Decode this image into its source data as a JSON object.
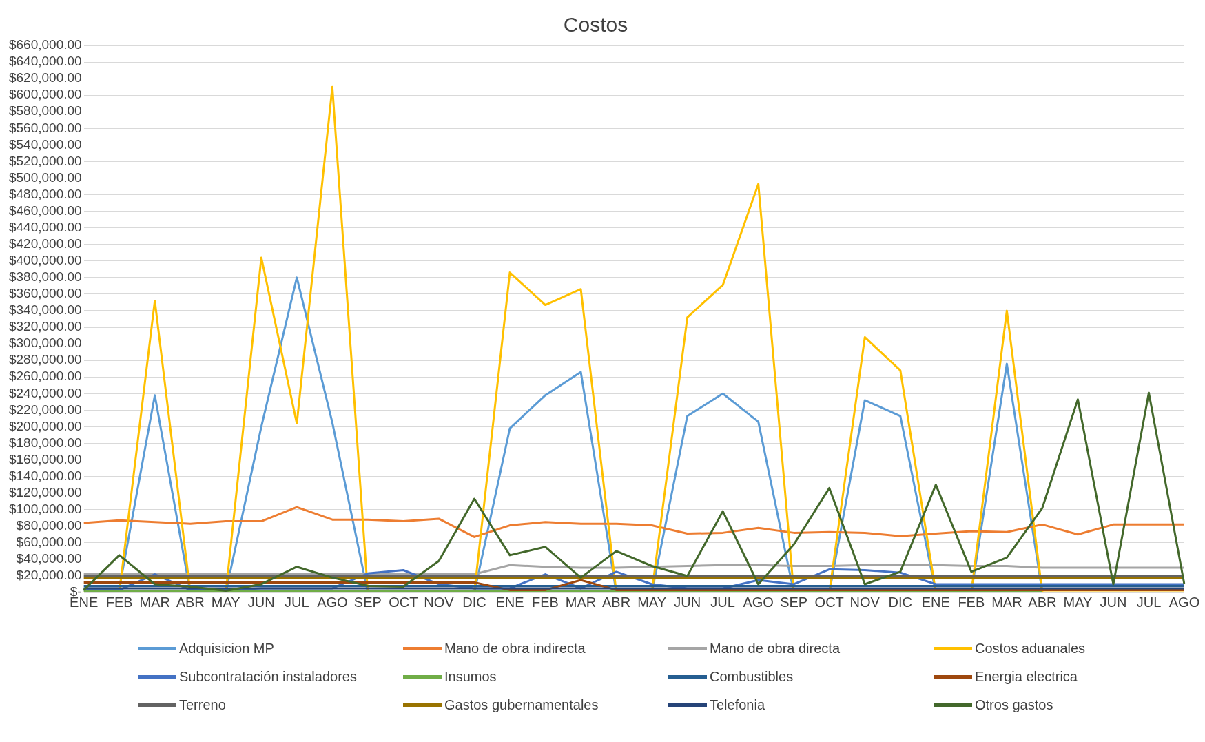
{
  "chart_data": {
    "type": "line",
    "title": "Costos",
    "categories": [
      "ENE",
      "FEB",
      "MAR",
      "ABR",
      "MAY",
      "JUN",
      "JUL",
      "AGO",
      "SEP",
      "OCT",
      "NOV",
      "DIC",
      "ENE",
      "FEB",
      "MAR",
      "ABR",
      "MAY",
      "JUN",
      "JUL",
      "AGO",
      "SEP",
      "OCT",
      "NOV",
      "DIC",
      "ENE",
      "FEB",
      "MAR",
      "ABR",
      "MAY",
      "JUN",
      "JUL",
      "AGO"
    ],
    "series": [
      {
        "name": "Adquisicion MP",
        "color": "#5b9bd5",
        "values": [
          5000,
          5000,
          238000,
          0,
          0,
          200000,
          380000,
          205000,
          0,
          0,
          0,
          0,
          198000,
          238000,
          266000,
          0,
          0,
          213000,
          240000,
          206000,
          0,
          0,
          232000,
          213000,
          0,
          0,
          276000,
          0,
          null,
          null,
          null,
          null
        ]
      },
      {
        "name": "Mano de obra indirecta",
        "color": "#ed7d31",
        "values": [
          84000,
          87000,
          85000,
          83000,
          86000,
          86000,
          103000,
          88000,
          88000,
          86000,
          89000,
          67000,
          81000,
          85000,
          83000,
          83000,
          81000,
          71000,
          72000,
          78000,
          72000,
          73000,
          72000,
          68000,
          71000,
          74000,
          73000,
          82000,
          70000,
          82000,
          82000,
          82000
        ]
      },
      {
        "name": "Mano de obra directa",
        "color": "#a5a5a5",
        "values": [
          22000,
          22000,
          22000,
          22000,
          22000,
          22000,
          22000,
          22000,
          22000,
          22000,
          22000,
          22000,
          33000,
          31000,
          30000,
          30000,
          31000,
          32000,
          33000,
          33000,
          32000,
          32000,
          33000,
          33000,
          33000,
          32000,
          32000,
          30000,
          30000,
          30000,
          30000,
          30000
        ]
      },
      {
        "name": "Costos aduanales",
        "color": "#ffc000",
        "values": [
          0,
          0,
          352000,
          0,
          0,
          404000,
          204000,
          610000,
          0,
          0,
          0,
          0,
          386000,
          347000,
          366000,
          0,
          0,
          332000,
          371000,
          493000,
          0,
          0,
          308000,
          268000,
          0,
          0,
          340000,
          0,
          0,
          0,
          0,
          0
        ]
      },
      {
        "name": "Subcontratación instaladores",
        "color": "#4472c4",
        "values": [
          3000,
          3000,
          22000,
          3000,
          3000,
          5000,
          5000,
          5000,
          23000,
          27000,
          10000,
          5000,
          5000,
          22000,
          5000,
          25000,
          10000,
          5000,
          5000,
          15000,
          10000,
          28000,
          27000,
          24000,
          10000,
          10000,
          10000,
          10000,
          10000,
          10000,
          10000,
          10000
        ]
      },
      {
        "name": "Insumos",
        "color": "#70ad47",
        "values": [
          2000,
          2000,
          2000,
          2000,
          2000,
          2000,
          2000,
          2000,
          2000,
          2000,
          2000,
          2000,
          2000,
          2000,
          2000,
          2000,
          2000,
          2000,
          2000,
          2000,
          2000,
          2000,
          2000,
          2000,
          2000,
          2000,
          2000,
          2000,
          null,
          null,
          null,
          null
        ]
      },
      {
        "name": "Combustibles",
        "color": "#255e91",
        "values": [
          8000,
          8000,
          8000,
          8000,
          8000,
          8000,
          8000,
          8000,
          8000,
          8000,
          8000,
          8000,
          8000,
          8000,
          8000,
          8000,
          8000,
          8000,
          8000,
          8000,
          8000,
          8000,
          8000,
          8000,
          8000,
          8000,
          8000,
          8000,
          8000,
          8000,
          8000,
          8000
        ]
      },
      {
        "name": "Energia electrica",
        "color": "#9e480e",
        "values": [
          12000,
          12000,
          12000,
          12000,
          12000,
          12000,
          12000,
          12000,
          12000,
          12000,
          12000,
          12000,
          3000,
          3000,
          15000,
          3000,
          3000,
          3000,
          3000,
          3000,
          3000,
          3000,
          3000,
          3000,
          3000,
          3000,
          3000,
          3000,
          3000,
          3000,
          3000,
          3000
        ]
      },
      {
        "name": "Terreno",
        "color": "#636363",
        "values": [
          20000,
          20000,
          20000,
          20000,
          20000,
          20000,
          20000,
          20000,
          20000,
          20000,
          20000,
          20000,
          20000,
          20000,
          20000,
          20000,
          20000,
          20000,
          20000,
          20000,
          20000,
          20000,
          20000,
          20000,
          20000,
          20000,
          20000,
          20000,
          20000,
          20000,
          20000,
          20000
        ]
      },
      {
        "name": "Gastos gubernamentales",
        "color": "#997300",
        "values": [
          17000,
          17000,
          17000,
          17000,
          17000,
          17000,
          17000,
          17000,
          17000,
          17000,
          17000,
          17000,
          17000,
          17000,
          17000,
          17000,
          17000,
          17000,
          17000,
          17000,
          17000,
          17000,
          17000,
          17000,
          17000,
          17000,
          17000,
          17000,
          17000,
          17000,
          17000,
          17000
        ]
      },
      {
        "name": "Telefonia",
        "color": "#264478",
        "values": [
          5000,
          5000,
          5000,
          5000,
          5000,
          5000,
          5000,
          5000,
          5000,
          5000,
          5000,
          5000,
          5000,
          5000,
          5000,
          5000,
          5000,
          5000,
          5000,
          5000,
          5000,
          5000,
          5000,
          5000,
          5000,
          5000,
          5000,
          5000,
          5000,
          5000,
          5000,
          5000
        ]
      },
      {
        "name": "Otros gastos",
        "color": "#43682b",
        "values": [
          3000,
          45000,
          10000,
          7000,
          2000,
          10000,
          31000,
          18000,
          8000,
          7000,
          38000,
          113000,
          45000,
          55000,
          18000,
          50000,
          32000,
          20000,
          98000,
          10000,
          58000,
          126000,
          10000,
          25000,
          130000,
          25000,
          42000,
          102000,
          233000,
          10000,
          241000,
          10000
        ]
      }
    ],
    "ylim": [
      0,
      660000
    ],
    "yticks": [
      {
        "value": 0,
        "label": "$-"
      },
      {
        "value": 20000,
        "label": "$20,000.00"
      },
      {
        "value": 40000,
        "label": "$40,000.00"
      },
      {
        "value": 60000,
        "label": "$60,000.00"
      },
      {
        "value": 80000,
        "label": "$80,000.00"
      },
      {
        "value": 100000,
        "label": "$100,000.00"
      },
      {
        "value": 120000,
        "label": "$120,000.00"
      },
      {
        "value": 140000,
        "label": "$140,000.00"
      },
      {
        "value": 160000,
        "label": "$160,000.00"
      },
      {
        "value": 180000,
        "label": "$180,000.00"
      },
      {
        "value": 200000,
        "label": "$200,000.00"
      },
      {
        "value": 220000,
        "label": "$220,000.00"
      },
      {
        "value": 240000,
        "label": "$240,000.00"
      },
      {
        "value": 260000,
        "label": "$260,000.00"
      },
      {
        "value": 280000,
        "label": "$280,000.00"
      },
      {
        "value": 300000,
        "label": "$300,000.00"
      },
      {
        "value": 320000,
        "label": "$320,000.00"
      },
      {
        "value": 340000,
        "label": "$340,000.00"
      },
      {
        "value": 360000,
        "label": "$360,000.00"
      },
      {
        "value": 380000,
        "label": "$380,000.00"
      },
      {
        "value": 400000,
        "label": "$400,000.00"
      },
      {
        "value": 420000,
        "label": "$420,000.00"
      },
      {
        "value": 440000,
        "label": "$440,000.00"
      },
      {
        "value": 460000,
        "label": "$460,000.00"
      },
      {
        "value": 480000,
        "label": "$480,000.00"
      },
      {
        "value": 500000,
        "label": "$500,000.00"
      },
      {
        "value": 520000,
        "label": "$520,000.00"
      },
      {
        "value": 540000,
        "label": "$540,000.00"
      },
      {
        "value": 560000,
        "label": "$560,000.00"
      },
      {
        "value": 580000,
        "label": "$580,000.00"
      },
      {
        "value": 600000,
        "label": "$600,000.00"
      },
      {
        "value": 620000,
        "label": "$620,000.00"
      },
      {
        "value": 640000,
        "label": "$640,000.00"
      },
      {
        "value": 660000,
        "label": "$660,000.00"
      }
    ],
    "grid": "y",
    "legend": "bottom",
    "marker": "none",
    "line_style": "solid"
  }
}
